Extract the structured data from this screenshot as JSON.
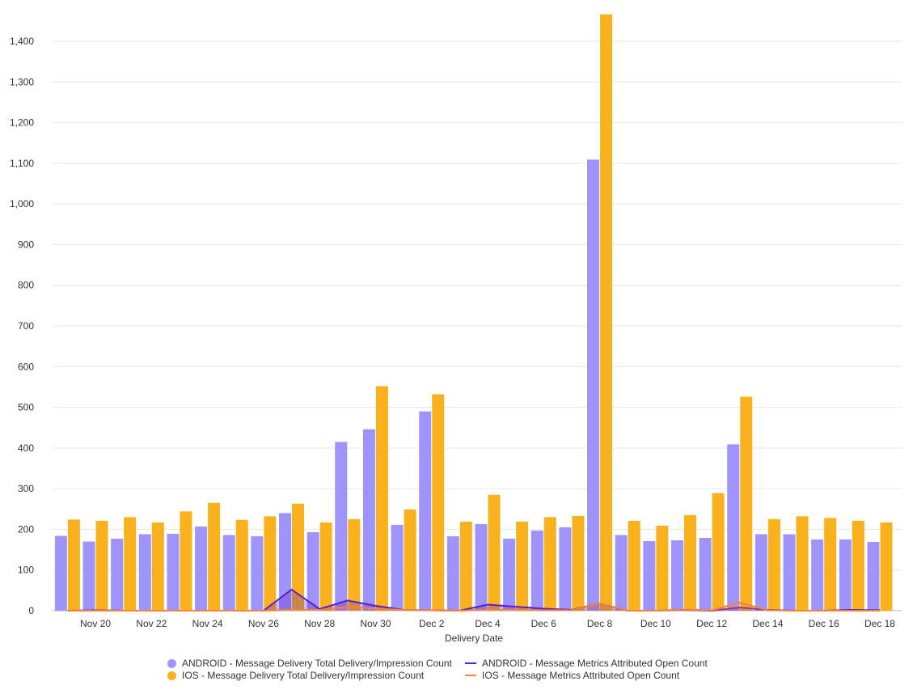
{
  "chart_data": {
    "type": "bar",
    "xlabel": "Delivery Date",
    "ylabel": "",
    "ylim": [
      0,
      1470
    ],
    "yticks": [
      0,
      100,
      200,
      300,
      400,
      500,
      600,
      700,
      800,
      900,
      1000,
      1100,
      1200,
      1300,
      1400
    ],
    "ytick_labels": [
      "0",
      "100",
      "200",
      "300",
      "400",
      "500",
      "600",
      "700",
      "800",
      "900",
      "1,000",
      "1,100",
      "1,200",
      "1,300",
      "1,400"
    ],
    "grid": true,
    "legend_position": "bottom",
    "categories": [
      "Nov 19",
      "Nov 20",
      "Nov 21",
      "Nov 22",
      "Nov 23",
      "Nov 24",
      "Nov 25",
      "Nov 26",
      "Nov 27",
      "Nov 28",
      "Nov 29",
      "Nov 30",
      "Dec 1",
      "Dec 2",
      "Dec 3",
      "Dec 4",
      "Dec 5",
      "Dec 6",
      "Dec 7",
      "Dec 8",
      "Dec 9",
      "Dec 10",
      "Dec 11",
      "Dec 12",
      "Dec 13",
      "Dec 14",
      "Dec 15",
      "Dec 16",
      "Dec 17",
      "Dec 18"
    ],
    "xtick_labels": [
      "",
      "Nov 20",
      "",
      "Nov 22",
      "",
      "Nov 24",
      "",
      "Nov 26",
      "",
      "Nov 28",
      "",
      "Nov 30",
      "",
      "Dec 2",
      "",
      "Dec 4",
      "",
      "Dec 6",
      "",
      "Dec 8",
      "",
      "Dec 10",
      "",
      "Dec 12",
      "",
      "Dec 14",
      "",
      "Dec 16",
      "",
      "Dec 18"
    ],
    "series": [
      {
        "name": "ANDROID - Message Delivery Total Delivery/Impression Count",
        "kind": "bar",
        "color": "#9e94fb",
        "values": [
          184,
          170,
          177,
          188,
          189,
          207,
          186,
          183,
          240,
          193,
          415,
          446,
          211,
          490,
          183,
          213,
          177,
          197,
          205,
          1109,
          186,
          171,
          173,
          179,
          409,
          188,
          188,
          175,
          175,
          169
        ]
      },
      {
        "name": "IOS - Message Delivery Total Delivery/Impression Count",
        "kind": "bar",
        "color": "#f9b21d",
        "values": [
          224,
          221,
          230,
          217,
          244,
          265,
          223,
          232,
          263,
          217,
          225,
          552,
          249,
          532,
          219,
          285,
          219,
          230,
          233,
          1466,
          221,
          209,
          235,
          289,
          526,
          225,
          232,
          228,
          221,
          217
        ]
      },
      {
        "name": "ANDROID - Message Metrics Attributed Open Count",
        "kind": "line",
        "color": "#5b21c7",
        "values": [
          0,
          1,
          0,
          0,
          0,
          0,
          0,
          0,
          52,
          4,
          25,
          12,
          2,
          1,
          0,
          15,
          10,
          5,
          2,
          18,
          0,
          0,
          2,
          0,
          8,
          2,
          0,
          0,
          2,
          1
        ]
      },
      {
        "name": "IOS - Message Metrics Attributed Open Count",
        "kind": "line",
        "color": "#f4843a",
        "values": [
          0,
          0,
          0,
          0,
          0,
          0,
          0,
          0,
          2,
          2,
          10,
          5,
          2,
          1,
          0,
          2,
          2,
          1,
          1,
          18,
          0,
          0,
          3,
          1,
          20,
          1,
          0,
          0,
          0,
          0
        ]
      }
    ]
  }
}
